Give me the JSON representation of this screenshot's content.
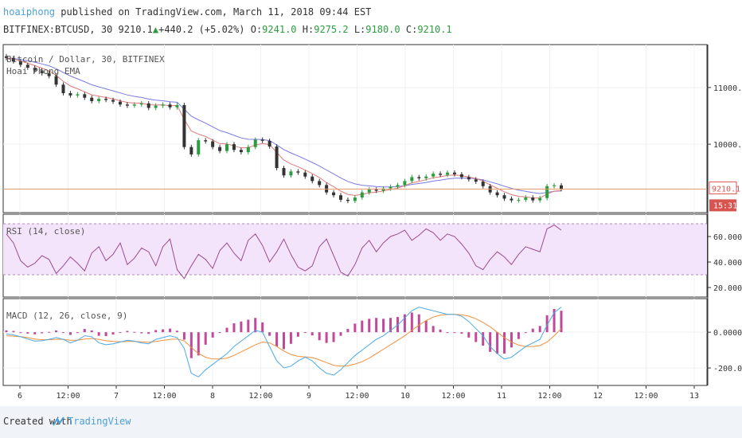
{
  "header": {
    "author": "hoaiphong",
    "published_text": "published on TradingView.com, March 11, 2018 09:44 EST",
    "symbol": "BITFINEX:BTCUSD, 30",
    "last": "9210.1",
    "change": "+440.2 (+5.02%)",
    "open_label": "O:",
    "open": "9241.0",
    "high_label": "H:",
    "high": "9275.2",
    "low_label": "L:",
    "low": "9180.0",
    "close_label": "C:",
    "close": "9210.1"
  },
  "footer": {
    "created": "Created with",
    "brand": "TradingView"
  },
  "colors": {
    "up": "#2a9d3f",
    "down": "#333333",
    "ema_fast": "#e07a7a",
    "ema_slow": "#7a7ae0",
    "rsi": "#9c4b8e",
    "rsi_band": "#f3e4fb",
    "macd": "#4aa8e8",
    "signal": "#f0903c",
    "hist": "#c2489a",
    "price_line": "#e8976a",
    "price_box": "#d9534f"
  },
  "chart_data": [
    {
      "type": "candlestick",
      "title": "Bitcoin / Dollar, 30, BITFINEX",
      "indicator": "Hoai Phong EMA",
      "y_ticks": [
        11000.0,
        10000.0
      ],
      "y_tick_labels": [
        "11000.0",
        "10000.0"
      ],
      "ylim": [
        8850,
        11700
      ],
      "last_price_label": "9210.1",
      "countdown_label": "15:31",
      "close_series": [
        11520,
        11460,
        11400,
        11350,
        11300,
        11250,
        11200,
        11050,
        10900,
        10860,
        10880,
        10820,
        10760,
        10800,
        10780,
        10750,
        10700,
        10680,
        10700,
        10720,
        10640,
        10680,
        10700,
        10650,
        10690,
        9950,
        9820,
        10070,
        10050,
        9950,
        9880,
        10000,
        9900,
        9860,
        9950,
        10080,
        10060,
        9960,
        9580,
        9450,
        9520,
        9500,
        9430,
        9350,
        9280,
        9150,
        9100,
        9020,
        9000,
        9060,
        9150,
        9200,
        9180,
        9220,
        9250,
        9280,
        9350,
        9420,
        9400,
        9430,
        9480,
        9460,
        9500,
        9470,
        9420,
        9380,
        9340,
        9260,
        9150,
        9100,
        9040,
        9010,
        9020,
        9060,
        9010,
        9050,
        9260,
        9275,
        9210
      ]
    },
    {
      "type": "line",
      "title": "RSI (14, close)",
      "y_ticks": [
        60,
        40,
        20
      ],
      "y_tick_labels": [
        "60.0000",
        "40.0000",
        "20.0000"
      ],
      "ylim": [
        15,
        75
      ],
      "bands": [
        30,
        70
      ],
      "values": [
        62,
        55,
        41,
        36,
        39,
        45,
        42,
        31,
        37,
        44,
        39,
        33,
        47,
        52,
        41,
        46,
        55,
        38,
        43,
        51,
        48,
        37,
        52,
        58,
        34,
        27,
        37,
        46,
        42,
        35,
        49,
        55,
        47,
        41,
        57,
        62,
        53,
        40,
        48,
        58,
        46,
        36,
        33,
        37,
        52,
        58,
        45,
        32,
        29,
        38,
        51,
        57,
        48,
        55,
        60,
        62,
        65,
        57,
        61,
        66,
        63,
        57,
        62,
        60,
        54,
        47,
        37,
        34,
        42,
        48,
        44,
        38,
        46,
        52,
        50,
        48,
        66,
        69,
        65
      ]
    },
    {
      "type": "line",
      "title": "MACD (12, 26, close, 9)",
      "y_ticks": [
        0,
        -200
      ],
      "y_tick_labels": [
        "0.0000",
        "-200.0000"
      ],
      "ylim": [
        -280,
        170
      ],
      "series": [
        {
          "name": "MACD",
          "values": [
            -10,
            -15,
            -25,
            -38,
            -50,
            -48,
            -40,
            -30,
            -40,
            -60,
            -45,
            -20,
            -25,
            -60,
            -70,
            -65,
            -55,
            -45,
            -50,
            -60,
            -65,
            -40,
            -30,
            -20,
            -30,
            -90,
            -230,
            -250,
            -210,
            -180,
            -150,
            -120,
            -80,
            -50,
            -20,
            10,
            0,
            -80,
            -160,
            -200,
            -190,
            -160,
            -140,
            -160,
            -200,
            -230,
            -240,
            -210,
            -170,
            -130,
            -100,
            -70,
            -40,
            -20,
            10,
            40,
            80,
            120,
            140,
            130,
            120,
            110,
            100,
            100,
            90,
            60,
            20,
            -20,
            -80,
            -120,
            -150,
            -140,
            -110,
            -80,
            -60,
            -40,
            40,
            110,
            140
          ]
        },
        {
          "name": "Signal",
          "values": [
            -20,
            -22,
            -25,
            -30,
            -38,
            -42,
            -42,
            -40,
            -40,
            -45,
            -45,
            -38,
            -35,
            -40,
            -48,
            -52,
            -53,
            -52,
            -52,
            -54,
            -56,
            -52,
            -46,
            -40,
            -38,
            -48,
            -85,
            -120,
            -140,
            -150,
            -150,
            -145,
            -130,
            -110,
            -90,
            -70,
            -55,
            -60,
            -80,
            -105,
            -125,
            -135,
            -138,
            -142,
            -155,
            -170,
            -185,
            -190,
            -188,
            -178,
            -165,
            -145,
            -120,
            -95,
            -70,
            -45,
            -20,
            10,
            40,
            65,
            85,
            95,
            100,
            100,
            98,
            90,
            75,
            55,
            30,
            0,
            -30,
            -55,
            -72,
            -80,
            -80,
            -75,
            -55,
            -20,
            20
          ]
        }
      ]
    }
  ],
  "time_axis": {
    "labels": [
      "6",
      "12:00",
      "7",
      "12:00",
      "8",
      "12:00",
      "9",
      "12:00",
      "10",
      "12:00",
      "11",
      "12:00",
      "12",
      "12:00",
      "13"
    ]
  }
}
